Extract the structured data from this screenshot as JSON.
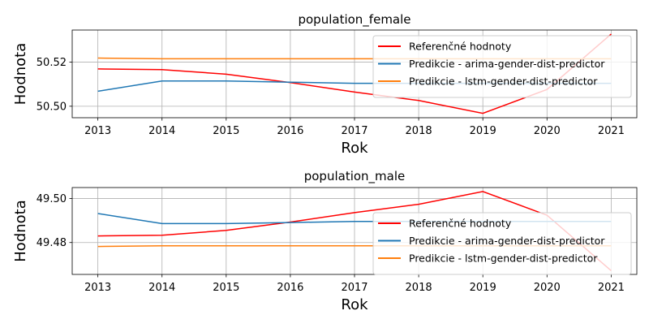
{
  "chart_data": [
    {
      "type": "line",
      "title": "population_female",
      "xlabel": "Rok",
      "ylabel": "Hodnota",
      "x": [
        2013,
        2014,
        2015,
        2016,
        2017,
        2018,
        2019,
        2020,
        2021
      ],
      "ylim": [
        50.4948,
        50.5345
      ],
      "yticks": [
        50.5,
        50.52
      ],
      "ytick_labels": [
        "50.50",
        "50.52"
      ],
      "grid": true,
      "legend_position": "upper right",
      "series": [
        {
          "name": "Referenčné hodnoty",
          "color": "#ff0000",
          "values": [
            50.5169,
            50.5166,
            50.5145,
            50.5107,
            50.5064,
            50.5026,
            50.4968,
            50.5076,
            50.5327
          ]
        },
        {
          "name": "Predikcie - arima-gender-dist-predictor",
          "color": "#1f77b4",
          "values": [
            50.5068,
            50.5114,
            50.5114,
            50.5109,
            50.5104,
            50.5104,
            50.5104,
            50.5104,
            50.5104
          ]
        },
        {
          "name": "Predikcie - lstm-gender-dist-predictor",
          "color": "#ff7f0e",
          "values": [
            50.5218,
            50.5215,
            50.5215,
            50.5215,
            50.5215,
            50.5215,
            50.5215,
            50.5215,
            50.5215
          ]
        }
      ]
    },
    {
      "type": "line",
      "title": "population_male",
      "xlabel": "Rok",
      "ylabel": "Hodnota",
      "x": [
        2013,
        2014,
        2015,
        2016,
        2017,
        2018,
        2019,
        2020,
        2021
      ],
      "ylim": [
        49.4655,
        49.505
      ],
      "yticks": [
        49.48,
        49.5
      ],
      "ytick_labels": [
        "49.48",
        "49.50"
      ],
      "grid": true,
      "legend_position": "lower right",
      "series": [
        {
          "name": "Referenčné hodnoty",
          "color": "#ff0000",
          "values": [
            49.483,
            49.4833,
            49.4855,
            49.4893,
            49.4936,
            49.4974,
            49.5032,
            49.4924,
            49.4672
          ]
        },
        {
          "name": "Predikcie - arima-gender-dist-predictor",
          "color": "#1f77b4",
          "values": [
            49.4932,
            49.4886,
            49.4886,
            49.4891,
            49.4896,
            49.4896,
            49.4896,
            49.4896,
            49.4896
          ]
        },
        {
          "name": "Predikcie - lstm-gender-dist-predictor",
          "color": "#ff7f0e",
          "values": [
            49.4782,
            49.4785,
            49.4785,
            49.4785,
            49.4785,
            49.4785,
            49.4785,
            49.4785,
            49.4785
          ]
        }
      ]
    }
  ]
}
